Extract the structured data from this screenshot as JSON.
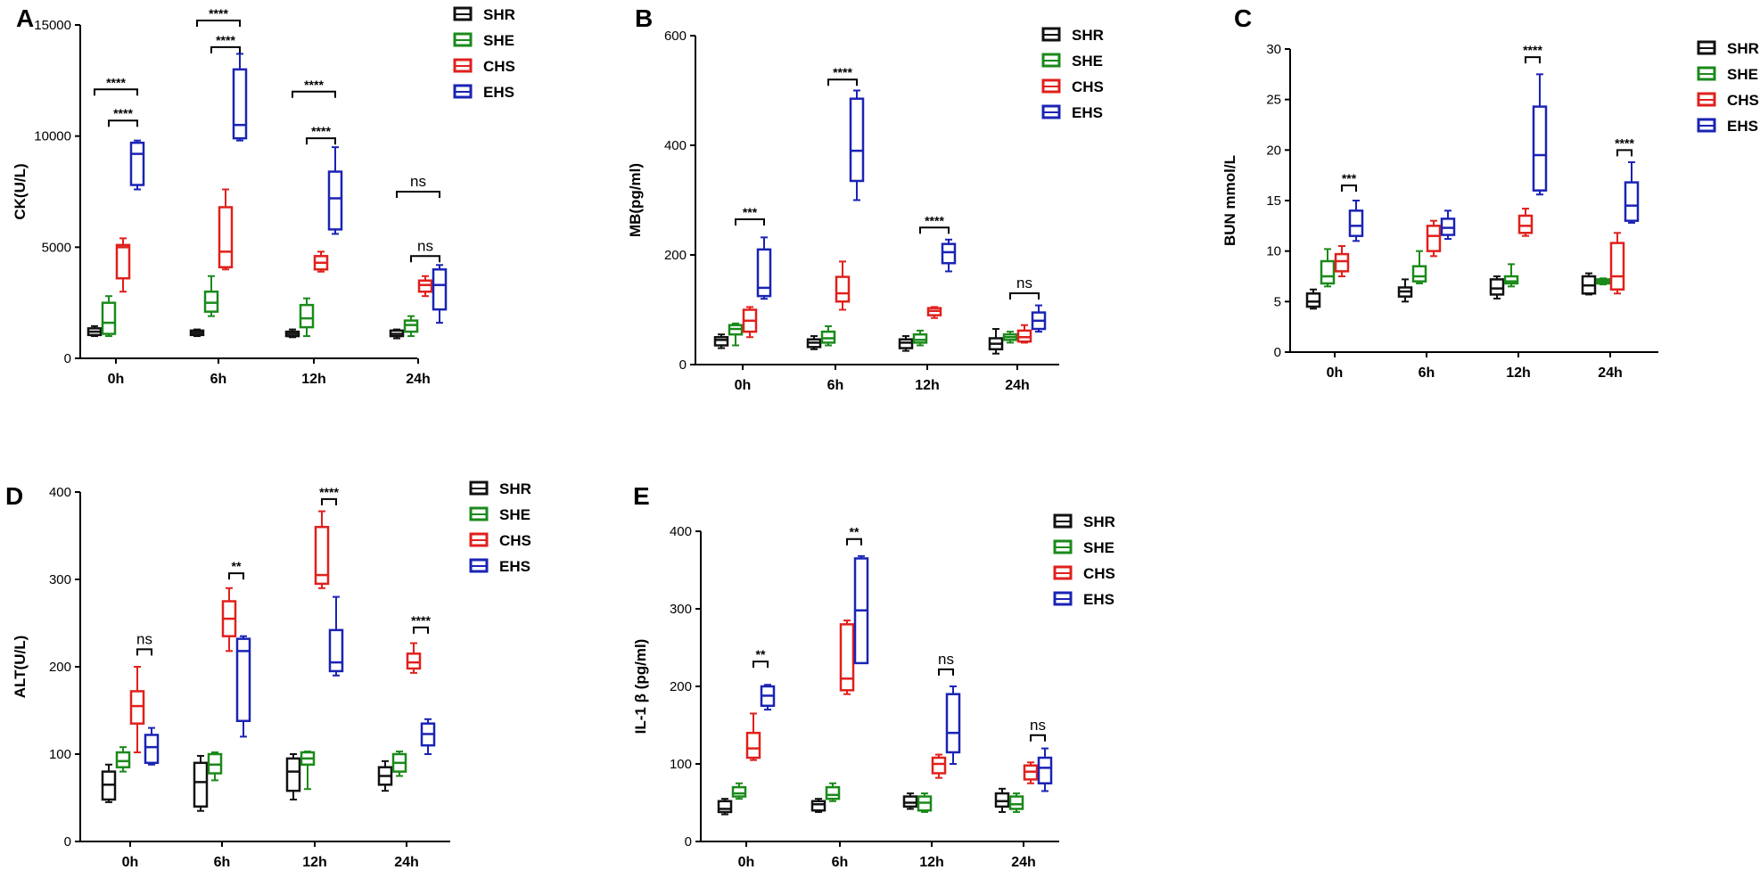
{
  "colors": {
    "SHR": "#111111",
    "SHE": "#1a8a1a",
    "CHS": "#e0201c",
    "EHS": "#1a23b4"
  },
  "groups": [
    "SHR",
    "SHE",
    "CHS",
    "EHS"
  ],
  "chart_data": [
    {
      "type": "box",
      "panel": "A",
      "ylabel": "CK(U/L)",
      "categories": [
        "0h",
        "6h",
        "12h",
        "24h"
      ],
      "ylim": [
        0,
        15000
      ],
      "yticks": [
        0,
        5000,
        10000,
        15000
      ],
      "series": [
        {
          "name": "SHR",
          "boxes": [
            [
              1000,
              1050,
              1200,
              1350,
              1450
            ],
            [
              1000,
              1050,
              1150,
              1250,
              1300
            ],
            [
              950,
              1000,
              1100,
              1200,
              1300
            ],
            [
              900,
              1000,
              1100,
              1250,
              1300
            ]
          ]
        },
        {
          "name": "SHE",
          "boxes": [
            [
              1000,
              1100,
              1600,
              2500,
              2800
            ],
            [
              1900,
              2100,
              2500,
              3000,
              3700
            ],
            [
              1000,
              1400,
              1800,
              2400,
              2700
            ],
            [
              1000,
              1200,
              1500,
              1700,
              1900
            ]
          ]
        },
        {
          "name": "CHS",
          "boxes": [
            [
              3000,
              3600,
              5000,
              5100,
              5400
            ],
            [
              4000,
              4100,
              4800,
              6800,
              7600
            ],
            [
              3900,
              4000,
              4300,
              4600,
              4800
            ],
            [
              2800,
              3000,
              3300,
              3500,
              3700
            ]
          ]
        },
        {
          "name": "EHS",
          "boxes": [
            [
              7600,
              7800,
              9200,
              9700,
              9800
            ],
            [
              9800,
              9900,
              10500,
              13000,
              13700
            ],
            [
              5600,
              5800,
              7200,
              8400,
              9500
            ],
            [
              1600,
              2200,
              3300,
              4000,
              4200
            ]
          ]
        }
      ],
      "annotations": [
        {
          "cat": 0,
          "from": "SHR",
          "to": "EHS",
          "label": "****",
          "y": 12100
        },
        {
          "cat": 0,
          "from": "SHE",
          "to": "EHS",
          "label": "****",
          "y": 10700
        },
        {
          "cat": 1,
          "from": "SHR",
          "to": "EHS",
          "label": "****",
          "y": 15200
        },
        {
          "cat": 1,
          "from": "SHE",
          "to": "EHS",
          "label": "****",
          "y": 14000
        },
        {
          "cat": 2,
          "from": "SHR",
          "to": "EHS",
          "label": "****",
          "y": 12000
        },
        {
          "cat": 2,
          "from": "SHE",
          "to": "EHS",
          "label": "****",
          "y": 9900
        },
        {
          "cat": 3,
          "from": "SHR",
          "to": "EHS",
          "label": "ns",
          "y": 7500
        },
        {
          "cat": 3,
          "from": "SHE",
          "to": "EHS",
          "label": "ns",
          "y": 4600
        }
      ]
    },
    {
      "type": "box",
      "panel": "B",
      "ylabel": "MB(pg/ml)",
      "categories": [
        "0h",
        "6h",
        "12h",
        "24h"
      ],
      "ylim": [
        0,
        600
      ],
      "yticks": [
        0,
        200,
        400,
        600
      ],
      "series": [
        {
          "name": "SHR",
          "boxes": [
            [
              30,
              35,
              45,
              50,
              55
            ],
            [
              28,
              32,
              40,
              46,
              52
            ],
            [
              25,
              30,
              40,
              46,
              52
            ],
            [
              20,
              28,
              38,
              48,
              65
            ]
          ]
        },
        {
          "name": "SHE",
          "boxes": [
            [
              35,
              55,
              65,
              72,
              75
            ],
            [
              35,
              40,
              48,
              60,
              70
            ],
            [
              35,
              40,
              45,
              55,
              62
            ],
            [
              40,
              45,
              50,
              55,
              60
            ]
          ]
        },
        {
          "name": "CHS",
          "boxes": [
            [
              50,
              60,
              80,
              100,
              105
            ],
            [
              100,
              115,
              130,
              160,
              188
            ],
            [
              85,
              90,
              98,
              103,
              105
            ],
            [
              40,
              42,
              50,
              62,
              72
            ]
          ]
        },
        {
          "name": "EHS",
          "boxes": [
            [
              120,
              125,
              140,
              210,
              232
            ],
            [
              300,
              335,
              390,
              485,
              500
            ],
            [
              170,
              185,
              205,
              220,
              228
            ],
            [
              60,
              65,
              80,
              95,
              108
            ]
          ]
        }
      ],
      "annotations": [
        {
          "cat": 0,
          "from": "SHE",
          "to": "EHS",
          "label": "***",
          "y": 265
        },
        {
          "cat": 1,
          "from": "SHE",
          "to": "EHS",
          "label": "****",
          "y": 520
        },
        {
          "cat": 2,
          "from": "SHE",
          "to": "EHS",
          "label": "****",
          "y": 250
        },
        {
          "cat": 3,
          "from": "SHE",
          "to": "EHS",
          "label": "ns",
          "y": 130
        }
      ]
    },
    {
      "type": "box",
      "panel": "C",
      "ylabel": "BUN mmol/L",
      "categories": [
        "0h",
        "6h",
        "12h",
        "24h"
      ],
      "ylim": [
        0,
        30
      ],
      "yticks": [
        0,
        5,
        10,
        15,
        20,
        25,
        30
      ],
      "series": [
        {
          "name": "SHR",
          "boxes": [
            [
              4.3,
              4.5,
              5.0,
              5.8,
              6.2
            ],
            [
              5.0,
              5.5,
              6.0,
              6.4,
              7.2
            ],
            [
              5.3,
              5.7,
              6.3,
              7.2,
              7.5
            ],
            [
              5.7,
              5.8,
              6.6,
              7.5,
              7.8
            ]
          ]
        },
        {
          "name": "SHE",
          "boxes": [
            [
              6.5,
              6.8,
              7.5,
              9.0,
              10.2
            ],
            [
              6.8,
              7.0,
              7.5,
              8.5,
              10.0
            ],
            [
              6.5,
              6.8,
              7.0,
              7.5,
              8.7
            ],
            [
              6.7,
              6.8,
              7.0,
              7.2,
              7.3
            ]
          ]
        },
        {
          "name": "CHS",
          "boxes": [
            [
              7.5,
              8.0,
              9.0,
              9.7,
              10.5
            ],
            [
              9.5,
              10.0,
              11.5,
              12.5,
              13.0
            ],
            [
              11.5,
              11.8,
              12.5,
              13.5,
              14.2
            ],
            [
              5.8,
              6.2,
              7.5,
              10.8,
              11.8
            ]
          ]
        },
        {
          "name": "EHS",
          "boxes": [
            [
              11.0,
              11.5,
              12.5,
              14.0,
              15.0
            ],
            [
              11.2,
              11.6,
              12.3,
              13.2,
              14.0
            ],
            [
              15.6,
              16.0,
              19.5,
              24.3,
              27.5
            ],
            [
              12.8,
              13.0,
              14.5,
              16.8,
              18.8
            ]
          ]
        }
      ],
      "annotations": [
        {
          "cat": 0,
          "from": "CHS",
          "to": "EHS",
          "label": "***",
          "y": 16.5
        },
        {
          "cat": 2,
          "from": "CHS",
          "to": "EHS",
          "label": "****",
          "y": 29.2
        },
        {
          "cat": 3,
          "from": "CHS",
          "to": "EHS",
          "label": "****",
          "y": 20.0
        }
      ]
    },
    {
      "type": "box",
      "panel": "D",
      "ylabel": "ALT(U/L)",
      "categories": [
        "0h",
        "6h",
        "12h",
        "24h"
      ],
      "ylim": [
        0,
        400
      ],
      "yticks": [
        0,
        100,
        200,
        300,
        400
      ],
      "series": [
        {
          "name": "SHR",
          "boxes": [
            [
              45,
              48,
              65,
              80,
              88
            ],
            [
              35,
              40,
              68,
              90,
              98
            ],
            [
              48,
              58,
              80,
              95,
              100
            ],
            [
              58,
              65,
              75,
              85,
              92
            ]
          ]
        },
        {
          "name": "SHE",
          "boxes": [
            [
              80,
              85,
              92,
              102,
              108
            ],
            [
              70,
              78,
              88,
              100,
              102
            ],
            [
              60,
              88,
              95,
              102,
              103
            ],
            [
              75,
              80,
              90,
              100,
              103
            ]
          ]
        },
        {
          "name": "CHS",
          "boxes": [
            [
              102,
              135,
              155,
              172,
              200
            ],
            [
              218,
              235,
              255,
              275,
              290
            ],
            [
              290,
              295,
              305,
              360,
              378
            ],
            [
              193,
              198,
              205,
              215,
              227
            ]
          ]
        },
        {
          "name": "EHS",
          "boxes": [
            [
              88,
              90,
              108,
              122,
              130
            ],
            [
              120,
              138,
              218,
              232,
              235
            ],
            [
              190,
              195,
              205,
              242,
              280
            ],
            [
              100,
              110,
              123,
              135,
              140
            ]
          ]
        }
      ],
      "annotations": [
        {
          "cat": 0,
          "from": "CHS",
          "to": "EHS",
          "label": "ns",
          "y": 220
        },
        {
          "cat": 1,
          "from": "CHS",
          "to": "EHS",
          "label": "**",
          "y": 307
        },
        {
          "cat": 2,
          "from": "CHS",
          "to": "EHS",
          "label": "****",
          "y": 392
        },
        {
          "cat": 3,
          "from": "CHS",
          "to": "EHS",
          "label": "****",
          "y": 245
        }
      ]
    },
    {
      "type": "box",
      "panel": "E",
      "ylabel": "IL-1 β (pg/ml)",
      "categories": [
        "0h",
        "6h",
        "12h",
        "24h"
      ],
      "ylim": [
        0,
        400
      ],
      "yticks": [
        0,
        100,
        200,
        300,
        400
      ],
      "series": [
        {
          "name": "SHR",
          "boxes": [
            [
              35,
              38,
              42,
              52,
              55
            ],
            [
              38,
              40,
              48,
              52,
              55
            ],
            [
              42,
              45,
              50,
              58,
              62
            ],
            [
              38,
              45,
              52,
              62,
              68
            ]
          ]
        },
        {
          "name": "SHE",
          "boxes": [
            [
              55,
              58,
              62,
              70,
              75
            ],
            [
              52,
              55,
              60,
              70,
              75
            ],
            [
              38,
              40,
              50,
              58,
              62
            ],
            [
              38,
              42,
              48,
              58,
              62
            ]
          ]
        },
        {
          "name": "CHS",
          "boxes": [
            [
              105,
              108,
              120,
              140,
              165
            ],
            [
              190,
              195,
              210,
              280,
              285
            ],
            [
              82,
              88,
              100,
              108,
              112
            ],
            [
              75,
              80,
              90,
              98,
              102
            ]
          ]
        },
        {
          "name": "EHS",
          "boxes": [
            [
              170,
              175,
              188,
              200,
              202
            ],
            [
              230,
              230,
              298,
              365,
              368
            ],
            [
              100,
              115,
              140,
              190,
              200
            ],
            [
              65,
              75,
              95,
              108,
              120
            ]
          ]
        }
      ],
      "annotations": [
        {
          "cat": 0,
          "from": "CHS",
          "to": "EHS",
          "label": "**",
          "y": 232
        },
        {
          "cat": 1,
          "from": "CHS",
          "to": "EHS",
          "label": "**",
          "y": 390
        },
        {
          "cat": 2,
          "from": "CHS",
          "to": "EHS",
          "label": "ns",
          "y": 222
        },
        {
          "cat": 3,
          "from": "CHS",
          "to": "EHS",
          "label": "ns",
          "y": 137
        }
      ]
    }
  ]
}
